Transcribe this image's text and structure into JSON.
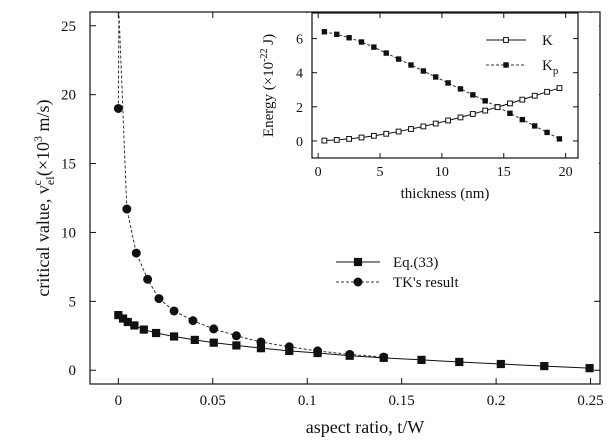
{
  "chart_data": [
    {
      "type": "line",
      "xlabel": "aspect ratio, t/W",
      "ylabel_parts": {
        "main": "critical value, v",
        "sub": "el",
        "sup": "c",
        "unit_open": "(×10",
        "unit_exp": "3",
        "unit_close": " m/s)"
      },
      "xlim": [
        -0.015,
        0.255
      ],
      "ylim": [
        -1,
        26
      ],
      "xticks": [
        0,
        0.05,
        0.1,
        0.15,
        0.2,
        0.25
      ],
      "xtick_labels": [
        "0",
        "0.05",
        "0.1",
        "0.15",
        "0.2",
        "0.25"
      ],
      "yticks": [
        0,
        5,
        10,
        15,
        20,
        25
      ],
      "ytick_labels": [
        "0",
        "5",
        "10",
        "15",
        "20",
        "25"
      ],
      "legend_position": "middle-right",
      "series": [
        {
          "name": "Eq.(33)",
          "marker": "square",
          "line": "solid",
          "x": [
            0,
            0.0025,
            0.005,
            0.0085,
            0.0135,
            0.02,
            0.0295,
            0.0405,
            0.0505,
            0.0625,
            0.0755,
            0.0905,
            0.1055,
            0.1225,
            0.1405,
            0.1605,
            0.1805,
            0.2025,
            0.2255,
            0.2495
          ],
          "y": [
            4.0,
            3.75,
            3.5,
            3.25,
            2.95,
            2.7,
            2.45,
            2.2,
            2.0,
            1.8,
            1.6,
            1.4,
            1.25,
            1.05,
            0.9,
            0.75,
            0.6,
            0.45,
            0.3,
            0.15
          ]
        },
        {
          "name": "TK's result",
          "marker": "circle",
          "line": "dashed",
          "x": [
            0,
            0.0045,
            0.0095,
            0.0155,
            0.0215,
            0.0295,
            0.0395,
            0.0505,
            0.0625,
            0.0755,
            0.0905,
            0.1055,
            0.1225,
            0.1405
          ],
          "y": [
            19.0,
            11.7,
            8.5,
            6.6,
            5.2,
            4.3,
            3.6,
            3.0,
            2.5,
            2.05,
            1.7,
            1.4,
            1.15,
            0.95
          ]
        }
      ]
    },
    {
      "type": "line",
      "xlabel": "thickness (nm)",
      "ylabel_parts": {
        "main": "Energy (×10",
        "sup": "-22",
        "close": " J)"
      },
      "xlim": [
        -0.5,
        21
      ],
      "ylim": [
        -1,
        7.5
      ],
      "xticks": [
        0,
        5,
        10,
        15,
        20
      ],
      "xtick_labels": [
        "0",
        "5",
        "10",
        "15",
        "20"
      ],
      "yticks": [
        0,
        2,
        4,
        6
      ],
      "ytick_labels": [
        "0",
        "2",
        "4",
        "6"
      ],
      "legend_position": "top-right",
      "series": [
        {
          "name": "K",
          "marker": "open-square",
          "line": "solid",
          "x": [
            0.5,
            1.5,
            2.5,
            3.5,
            4.5,
            5.5,
            6.5,
            7.5,
            8.5,
            9.5,
            10.5,
            11.5,
            12.5,
            13.5,
            14.5,
            15.5,
            16.5,
            17.5,
            18.5,
            19.5
          ],
          "y": [
            0.02,
            0.06,
            0.12,
            0.2,
            0.3,
            0.42,
            0.55,
            0.7,
            0.85,
            1.02,
            1.2,
            1.38,
            1.58,
            1.78,
            1.98,
            2.2,
            2.42,
            2.65,
            2.88,
            3.1
          ]
        },
        {
          "name": "K_p",
          "label_main": "K",
          "label_sub": "p",
          "marker": "filled-square",
          "line": "dashed",
          "x": [
            0.5,
            1.5,
            2.5,
            3.5,
            4.5,
            5.5,
            6.5,
            7.5,
            8.5,
            9.5,
            10.5,
            11.5,
            12.5,
            13.5,
            14.5,
            15.5,
            16.5,
            17.5,
            18.5,
            19.5
          ],
          "y": [
            6.4,
            6.25,
            6.05,
            5.8,
            5.5,
            5.15,
            4.8,
            4.45,
            4.1,
            3.75,
            3.4,
            3.05,
            2.7,
            2.35,
            2.0,
            1.62,
            1.25,
            0.88,
            0.5,
            0.12
          ]
        }
      ]
    }
  ]
}
